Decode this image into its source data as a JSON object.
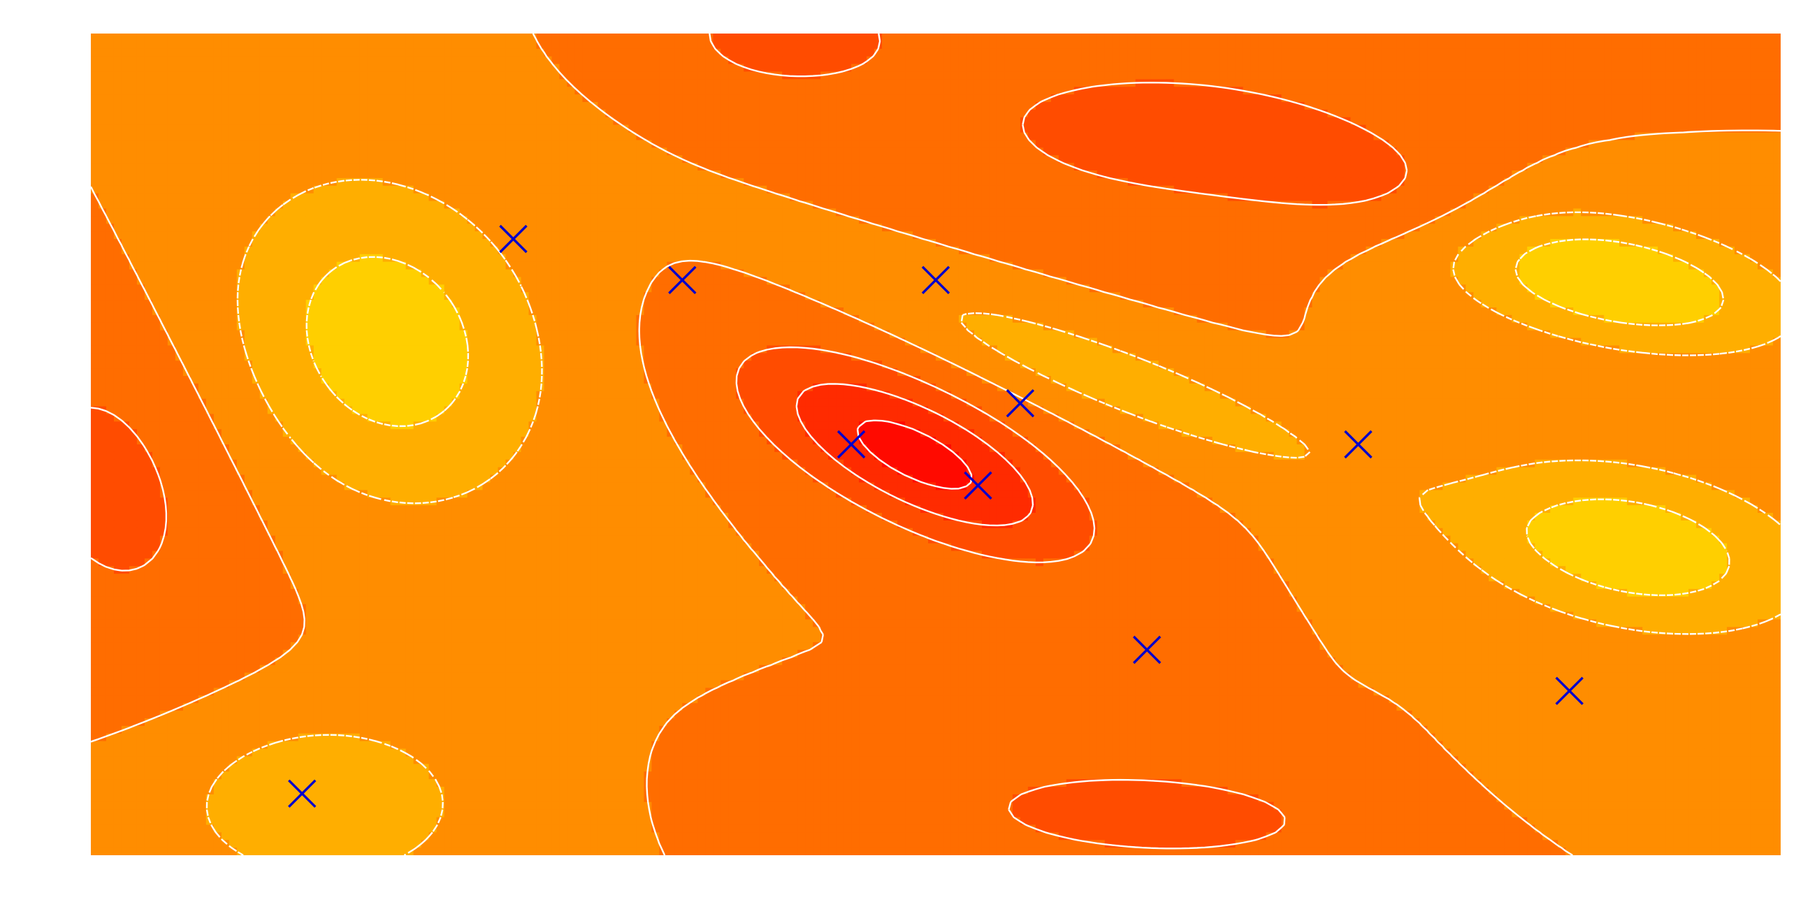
{
  "chart_data": {
    "type": "contour",
    "title": "",
    "xlabel": "",
    "ylabel": "",
    "xlim": [
      0,
      8
    ],
    "ylim": [
      0,
      4
    ],
    "grid": false,
    "legend": "none",
    "colormap": "autumn",
    "levels": [
      -3,
      -2,
      -1,
      0,
      1,
      2,
      3
    ],
    "negative_contour_style": "dashed",
    "contour_color": "#ffffff",
    "marker": {
      "symbol": "x",
      "color": "#0000cc"
    },
    "points": [
      {
        "x": 2.0,
        "y": 3.0
      },
      {
        "x": 2.8,
        "y": 2.8
      },
      {
        "x": 4.0,
        "y": 2.8
      },
      {
        "x": 4.4,
        "y": 2.2
      },
      {
        "x": 3.6,
        "y": 2.0
      },
      {
        "x": 4.2,
        "y": 1.8
      },
      {
        "x": 6.0,
        "y": 2.0
      },
      {
        "x": 5.0,
        "y": 1.0
      },
      {
        "x": 7.0,
        "y": 0.8
      },
      {
        "x": 1.0,
        "y": 0.3
      }
    ],
    "field_terms": [
      {
        "a": 3.4,
        "x0": 3.9,
        "y0": 1.95,
        "sx": 0.6,
        "sy": 0.22,
        "rot": -0.47
      },
      {
        "a": 1.0,
        "x0": 6.0,
        "y0": 3.3,
        "sx": 0.55,
        "sy": 0.2,
        "rot": -0.3
      },
      {
        "a": -2.6,
        "x0": 1.4,
        "y0": 2.5,
        "sx": 0.5,
        "sy": 0.6,
        "rot": 0.6
      },
      {
        "a": -3.0,
        "x0": 7.2,
        "y0": 2.8,
        "sx": 0.6,
        "sy": 0.22,
        "rot": -0.2
      },
      {
        "a": -2.7,
        "x0": 7.3,
        "y0": 1.5,
        "sx": 0.6,
        "sy": 0.28,
        "rot": -0.2
      },
      {
        "a": -1.6,
        "x0": 4.9,
        "y0": 2.3,
        "sx": 0.9,
        "sy": 0.14,
        "rot": -0.38
      },
      {
        "a": -1.9,
        "x0": 1.1,
        "y0": 0.25,
        "sx": 0.5,
        "sy": 0.3,
        "rot": 0.0
      },
      {
        "a": -0.6,
        "x0": 7.5,
        "y0": 0.4,
        "sx": 0.5,
        "sy": 0.2,
        "rot": 0.0
      },
      {
        "a": 1.4,
        "x0": 5.0,
        "y0": 0.2,
        "sx": 0.8,
        "sy": 0.2,
        "rot": -0.05
      },
      {
        "a": 1.3,
        "x0": 5.0,
        "y0": 3.5,
        "sx": 0.8,
        "sy": 0.3,
        "rot": -0.1
      },
      {
        "a": 1.3,
        "x0": 0.1,
        "y0": 1.8,
        "sx": 0.4,
        "sy": 0.6,
        "rot": 0.3
      },
      {
        "a": 1.5,
        "x0": 3.3,
        "y0": 4.0,
        "sx": 0.4,
        "sy": 0.2,
        "rot": 0.0
      }
    ]
  }
}
